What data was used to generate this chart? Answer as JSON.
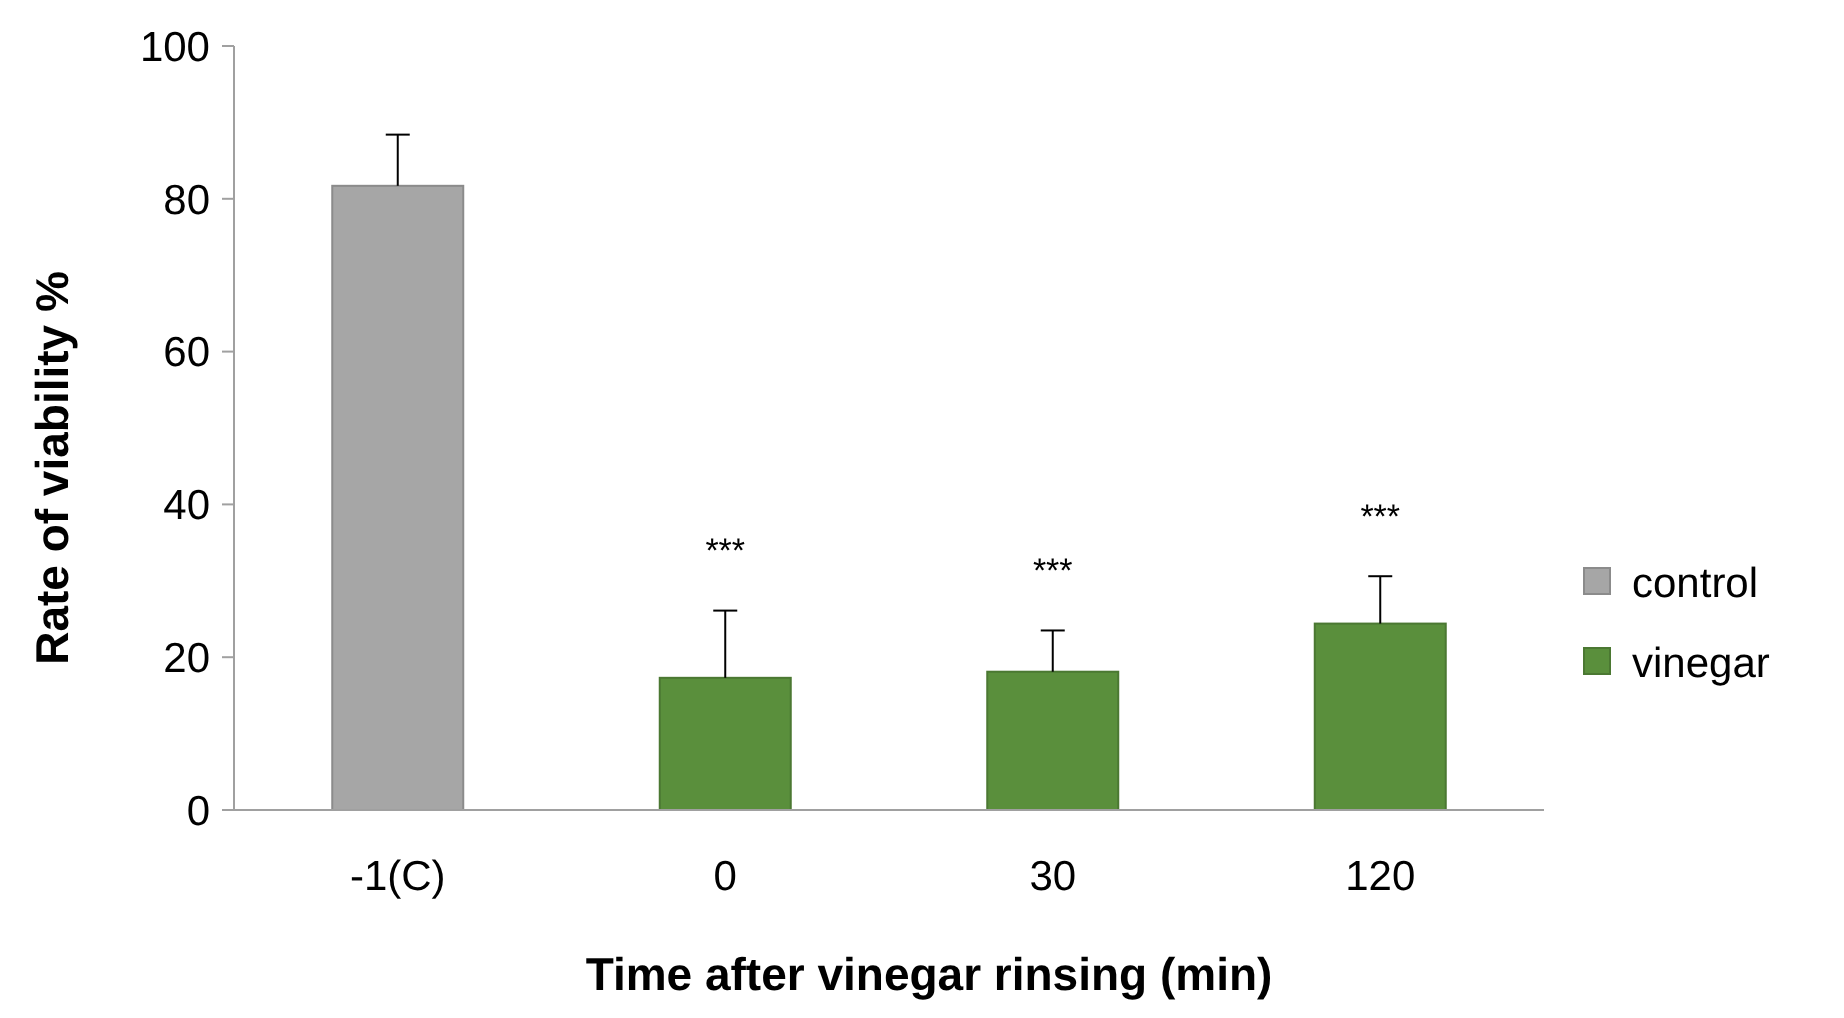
{
  "chart_data": {
    "type": "bar",
    "xlabel": "Time after vinegar rinsing (min)",
    "ylabel": "Rate of viability %",
    "categories": [
      "-1(C)",
      "0",
      "30",
      "120"
    ],
    "series": [
      {
        "name": "control",
        "color": "#a6a6a6",
        "values": [
          81.7,
          null,
          null,
          null
        ],
        "errors": [
          6.7,
          null,
          null,
          null
        ]
      },
      {
        "name": "vinegar",
        "color": "#5a8f3c",
        "values": [
          null,
          17.3,
          18.1,
          24.4
        ],
        "errors": [
          null,
          8.8,
          5.4,
          6.2
        ]
      }
    ],
    "ylim": [
      0,
      100
    ],
    "yticks": [
      0,
      20,
      40,
      60,
      80,
      100
    ],
    "grid": false,
    "legend": "right",
    "annotations": [
      "***",
      "***",
      "***"
    ]
  }
}
